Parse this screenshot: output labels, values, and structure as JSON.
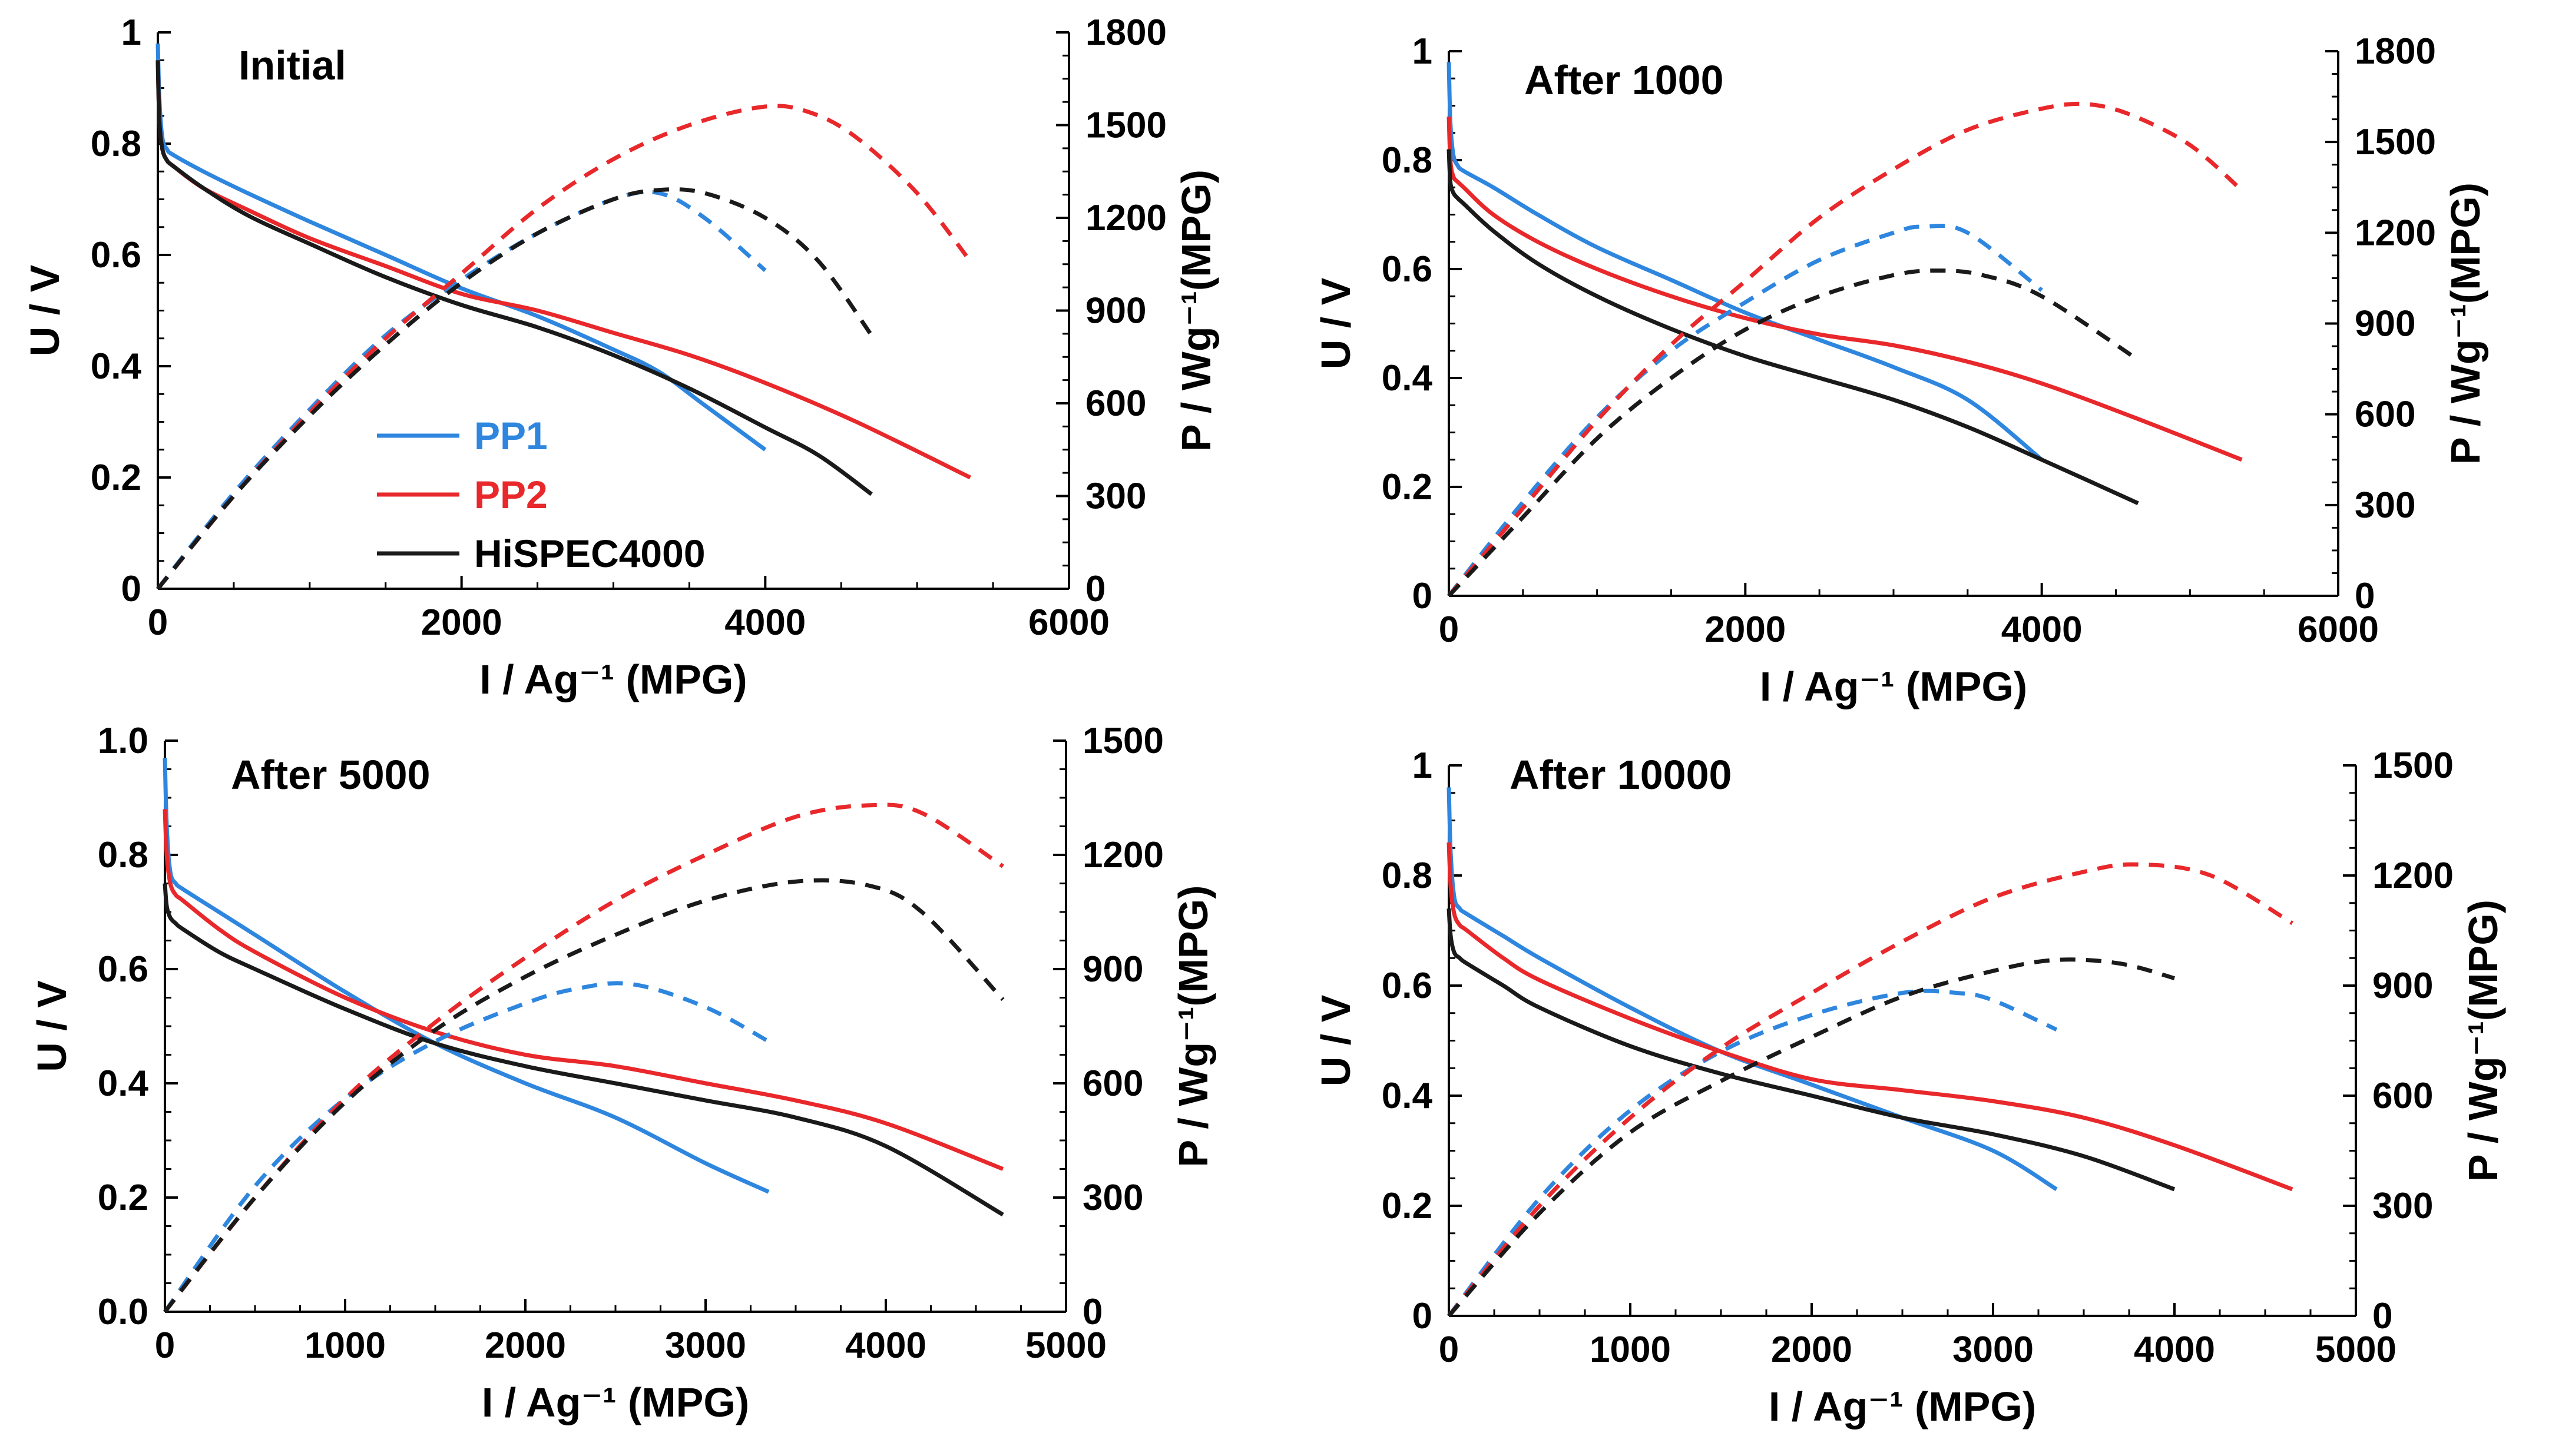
{
  "chart_data": [
    {
      "type": "line",
      "title": "Initial",
      "xlabel": "I / Ag⁻¹ (MPG)",
      "ylabel": "U / V",
      "y2label": "P / Wg⁻¹(MPG)",
      "xlim": [
        0,
        6000
      ],
      "ylim": [
        0,
        1
      ],
      "y2lim": [
        0,
        1800
      ],
      "xticks": [
        "0",
        "2000",
        "4000",
        "6000"
      ],
      "yticks": [
        "0",
        "0.2",
        "0.4",
        "0.6",
        "0.8",
        "1"
      ],
      "y2ticks": [
        "0",
        "300",
        "600",
        "900",
        "1200",
        "1500",
        "1800"
      ],
      "legend": {
        "placement": "lower-left",
        "entries": [
          {
            "label": "PP1",
            "color": "#2E86DE"
          },
          {
            "label": "PP2",
            "color": "#E8282B"
          },
          {
            "label": "HiSPEC4000",
            "color": "#1A1A1A"
          }
        ]
      },
      "series": [
        {
          "name": "PP1",
          "kind": "voltage",
          "axis": "left",
          "color": "#2E86DE",
          "x": [
            0,
            10,
            30,
            60,
            100,
            300,
            600,
            1000,
            1500,
            2000,
            2500,
            3000,
            3300,
            3600,
            4000
          ],
          "y": [
            0.98,
            0.88,
            0.81,
            0.79,
            0.78,
            0.75,
            0.71,
            0.66,
            0.6,
            0.54,
            0.49,
            0.43,
            0.39,
            0.33,
            0.25
          ]
        },
        {
          "name": "PP2",
          "kind": "voltage",
          "axis": "left",
          "color": "#E8282B",
          "x": [
            0,
            10,
            30,
            60,
            100,
            300,
            600,
            1000,
            1500,
            2000,
            2500,
            3000,
            3500,
            4000,
            4600,
            5350
          ],
          "y": [
            0.95,
            0.84,
            0.79,
            0.77,
            0.76,
            0.72,
            0.68,
            0.63,
            0.58,
            0.53,
            0.5,
            0.46,
            0.42,
            0.37,
            0.3,
            0.2
          ]
        },
        {
          "name": "HiSPEC4000",
          "kind": "voltage",
          "axis": "left",
          "color": "#1A1A1A",
          "x": [
            0,
            10,
            30,
            60,
            100,
            300,
            600,
            1000,
            1500,
            2000,
            2500,
            3000,
            3500,
            4000,
            4350,
            4700
          ],
          "y": [
            0.95,
            0.84,
            0.79,
            0.77,
            0.76,
            0.72,
            0.67,
            0.62,
            0.56,
            0.51,
            0.47,
            0.42,
            0.36,
            0.29,
            0.24,
            0.17
          ]
        },
        {
          "name": "PP1",
          "kind": "power",
          "axis": "right",
          "color": "#2E86DE",
          "x": [
            0,
            500,
            1000,
            1500,
            2000,
            2500,
            3000,
            3300,
            3600,
            4000
          ],
          "y": [
            0,
            310,
            580,
            820,
            1000,
            1150,
            1260,
            1280,
            1200,
            1030
          ]
        },
        {
          "name": "PP2",
          "kind": "power",
          "axis": "right",
          "color": "#E8282B",
          "x": [
            0,
            500,
            1000,
            1500,
            2000,
            2500,
            3000,
            3500,
            4000,
            4300,
            4600,
            5000,
            5350
          ],
          "y": [
            0,
            300,
            570,
            810,
            1020,
            1230,
            1390,
            1500,
            1560,
            1540,
            1460,
            1280,
            1060
          ]
        },
        {
          "name": "HiSPEC4000",
          "kind": "power",
          "axis": "right",
          "color": "#1A1A1A",
          "x": [
            0,
            500,
            1000,
            1500,
            2000,
            2500,
            3000,
            3300,
            3600,
            4000,
            4350,
            4700
          ],
          "y": [
            0,
            300,
            560,
            790,
            990,
            1150,
            1260,
            1290,
            1280,
            1200,
            1060,
            820
          ]
        }
      ]
    },
    {
      "type": "line",
      "title": "After 1000",
      "xlabel": "I / Ag⁻¹ (MPG)",
      "ylabel": "U / V",
      "y2label": "P / Wg⁻¹(MPG)",
      "xlim": [
        0,
        6000
      ],
      "ylim": [
        0,
        1
      ],
      "y2lim": [
        0,
        1800
      ],
      "xticks": [
        "0",
        "2000",
        "4000",
        "6000"
      ],
      "yticks": [
        "0",
        "0.2",
        "0.4",
        "0.6",
        "0.8",
        "1"
      ],
      "y2ticks": [
        "0",
        "300",
        "600",
        "900",
        "1200",
        "1500",
        "1800"
      ],
      "series": [
        {
          "name": "PP1",
          "kind": "voltage",
          "axis": "left",
          "color": "#2E86DE",
          "x": [
            0,
            10,
            30,
            60,
            100,
            300,
            600,
            1000,
            1500,
            2000,
            2500,
            3000,
            3500,
            4000
          ],
          "y": [
            0.98,
            0.87,
            0.81,
            0.79,
            0.78,
            0.75,
            0.7,
            0.64,
            0.58,
            0.52,
            0.47,
            0.42,
            0.36,
            0.25
          ]
        },
        {
          "name": "PP2",
          "kind": "voltage",
          "axis": "left",
          "color": "#E8282B",
          "x": [
            0,
            10,
            30,
            60,
            100,
            300,
            600,
            1000,
            1500,
            2000,
            2500,
            3000,
            3500,
            4000,
            4600,
            5350
          ],
          "y": [
            0.88,
            0.8,
            0.77,
            0.76,
            0.75,
            0.7,
            0.65,
            0.6,
            0.55,
            0.51,
            0.48,
            0.46,
            0.43,
            0.39,
            0.33,
            0.25
          ]
        },
        {
          "name": "HiSPEC4000",
          "kind": "voltage",
          "axis": "left",
          "color": "#1A1A1A",
          "x": [
            0,
            10,
            30,
            60,
            100,
            300,
            600,
            1000,
            1500,
            2000,
            2500,
            3000,
            3500,
            4000,
            4650
          ],
          "y": [
            0.82,
            0.76,
            0.74,
            0.73,
            0.72,
            0.67,
            0.61,
            0.55,
            0.49,
            0.44,
            0.4,
            0.36,
            0.31,
            0.25,
            0.17
          ]
        },
        {
          "name": "PP1",
          "kind": "power",
          "axis": "right",
          "color": "#2E86DE",
          "x": [
            0,
            500,
            1000,
            1500,
            2000,
            2500,
            3000,
            3200,
            3500,
            4000
          ],
          "y": [
            0,
            310,
            590,
            810,
            970,
            1110,
            1200,
            1220,
            1200,
            1010
          ]
        },
        {
          "name": "PP2",
          "kind": "power",
          "axis": "right",
          "color": "#E8282B",
          "x": [
            0,
            500,
            1000,
            1500,
            2000,
            2500,
            3000,
            3500,
            4000,
            4300,
            4600,
            5000,
            5350
          ],
          "y": [
            0,
            290,
            580,
            830,
            1040,
            1250,
            1410,
            1540,
            1610,
            1625,
            1590,
            1490,
            1340
          ]
        },
        {
          "name": "HiSPEC4000",
          "kind": "power",
          "axis": "right",
          "color": "#1A1A1A",
          "x": [
            0,
            500,
            1000,
            1500,
            2000,
            2500,
            3000,
            3300,
            3600,
            4000,
            4650
          ],
          "y": [
            0,
            260,
            520,
            720,
            880,
            990,
            1060,
            1075,
            1060,
            990,
            780
          ]
        }
      ]
    },
    {
      "type": "line",
      "title": "After 5000",
      "xlabel": "I / Ag⁻¹ (MPG)",
      "ylabel": "U / V",
      "y2label": "P / Wg⁻¹(MPG)",
      "xlim": [
        0,
        5000
      ],
      "ylim": [
        0,
        1
      ],
      "y2lim": [
        0,
        1500
      ],
      "xticks": [
        "0",
        "1000",
        "2000",
        "3000",
        "4000",
        "5000"
      ],
      "yticks": [
        "0.0",
        "0.2",
        "0.4",
        "0.6",
        "0.8",
        "1.0"
      ],
      "y2ticks": [
        "0",
        "300",
        "600",
        "900",
        "1200",
        "1500"
      ],
      "series": [
        {
          "name": "PP1",
          "kind": "voltage",
          "axis": "left",
          "color": "#2E86DE",
          "x": [
            0,
            10,
            30,
            60,
            100,
            300,
            500,
            1000,
            1500,
            2000,
            2500,
            3000,
            3350
          ],
          "y": [
            0.97,
            0.85,
            0.77,
            0.75,
            0.74,
            0.7,
            0.66,
            0.56,
            0.47,
            0.4,
            0.34,
            0.26,
            0.21
          ]
        },
        {
          "name": "PP2",
          "kind": "voltage",
          "axis": "left",
          "color": "#E8282B",
          "x": [
            0,
            10,
            30,
            60,
            100,
            300,
            500,
            1000,
            1500,
            2000,
            2500,
            3000,
            3500,
            4000,
            4650
          ],
          "y": [
            0.88,
            0.8,
            0.75,
            0.73,
            0.72,
            0.67,
            0.63,
            0.55,
            0.49,
            0.45,
            0.43,
            0.4,
            0.37,
            0.33,
            0.25
          ]
        },
        {
          "name": "HiSPEC4000",
          "kind": "voltage",
          "axis": "left",
          "color": "#1A1A1A",
          "x": [
            0,
            10,
            30,
            60,
            100,
            300,
            500,
            1000,
            1500,
            2000,
            2500,
            3000,
            3500,
            4000,
            4650
          ],
          "y": [
            0.75,
            0.71,
            0.69,
            0.68,
            0.67,
            0.63,
            0.6,
            0.53,
            0.47,
            0.43,
            0.4,
            0.37,
            0.34,
            0.29,
            0.17
          ]
        },
        {
          "name": "PP1",
          "kind": "power",
          "axis": "right",
          "color": "#2E86DE",
          "x": [
            0,
            500,
            1000,
            1500,
            2000,
            2300,
            2600,
            3000,
            3350
          ],
          "y": [
            0,
            330,
            560,
            710,
            810,
            850,
            860,
            800,
            710
          ]
        },
        {
          "name": "PP2",
          "kind": "power",
          "axis": "right",
          "color": "#E8282B",
          "x": [
            0,
            500,
            1000,
            1500,
            2000,
            2500,
            3000,
            3500,
            3900,
            4200,
            4650
          ],
          "y": [
            0,
            300,
            560,
            760,
            930,
            1080,
            1200,
            1300,
            1330,
            1310,
            1170
          ]
        },
        {
          "name": "HiSPEC4000",
          "kind": "power",
          "axis": "right",
          "color": "#1A1A1A",
          "x": [
            0,
            500,
            1000,
            1500,
            2000,
            2500,
            3000,
            3500,
            3900,
            4200,
            4650
          ],
          "y": [
            0,
            300,
            550,
            740,
            880,
            990,
            1080,
            1130,
            1120,
            1050,
            820
          ]
        }
      ]
    },
    {
      "type": "line",
      "title": "After 10000",
      "xlabel": "I / Ag⁻¹ (MPG)",
      "ylabel": "U / V",
      "y2label": "P / Wg⁻¹(MPG)",
      "xlim": [
        0,
        5000
      ],
      "ylim": [
        0,
        1
      ],
      "y2lim": [
        0,
        1500
      ],
      "xticks": [
        "0",
        "1000",
        "2000",
        "3000",
        "4000",
        "5000"
      ],
      "yticks": [
        "0",
        "0.2",
        "0.4",
        "0.6",
        "0.8",
        "1"
      ],
      "y2ticks": [
        "0",
        "300",
        "600",
        "900",
        "1200",
        "1500"
      ],
      "series": [
        {
          "name": "PP1",
          "kind": "voltage",
          "axis": "left",
          "color": "#2E86DE",
          "x": [
            0,
            10,
            30,
            60,
            100,
            300,
            500,
            1000,
            1500,
            2000,
            2500,
            3000,
            3350
          ],
          "y": [
            0.96,
            0.84,
            0.76,
            0.74,
            0.73,
            0.69,
            0.65,
            0.56,
            0.48,
            0.42,
            0.36,
            0.3,
            0.23
          ]
        },
        {
          "name": "PP2",
          "kind": "voltage",
          "axis": "left",
          "color": "#E8282B",
          "x": [
            0,
            10,
            30,
            60,
            100,
            300,
            500,
            1000,
            1500,
            2000,
            2500,
            3000,
            3500,
            4000,
            4650
          ],
          "y": [
            0.86,
            0.78,
            0.73,
            0.71,
            0.7,
            0.65,
            0.61,
            0.54,
            0.48,
            0.43,
            0.41,
            0.39,
            0.36,
            0.31,
            0.23
          ]
        },
        {
          "name": "HiSPEC4000",
          "kind": "voltage",
          "axis": "left",
          "color": "#1A1A1A",
          "x": [
            0,
            10,
            30,
            60,
            100,
            300,
            500,
            1000,
            1500,
            2000,
            2500,
            3000,
            3500,
            4000
          ],
          "y": [
            0.74,
            0.69,
            0.66,
            0.65,
            0.64,
            0.6,
            0.56,
            0.49,
            0.44,
            0.4,
            0.36,
            0.33,
            0.29,
            0.23
          ]
        },
        {
          "name": "PP1",
          "kind": "power",
          "axis": "right",
          "color": "#2E86DE",
          "x": [
            0,
            500,
            1000,
            1500,
            2000,
            2500,
            2800,
            3000,
            3350
          ],
          "y": [
            0,
            320,
            560,
            720,
            820,
            880,
            880,
            860,
            780
          ]
        },
        {
          "name": "PP2",
          "kind": "power",
          "axis": "right",
          "color": "#E8282B",
          "x": [
            0,
            500,
            1000,
            1500,
            2000,
            2500,
            3000,
            3500,
            3800,
            4200,
            4650
          ],
          "y": [
            0,
            300,
            540,
            730,
            880,
            1020,
            1140,
            1210,
            1230,
            1200,
            1070
          ]
        },
        {
          "name": "HiSPEC4000",
          "kind": "power",
          "axis": "right",
          "color": "#1A1A1A",
          "x": [
            0,
            500,
            1000,
            1500,
            2000,
            2500,
            3000,
            3350,
            3700,
            4000
          ],
          "y": [
            0,
            280,
            500,
            640,
            760,
            870,
            940,
            970,
            960,
            920
          ]
        }
      ]
    }
  ]
}
